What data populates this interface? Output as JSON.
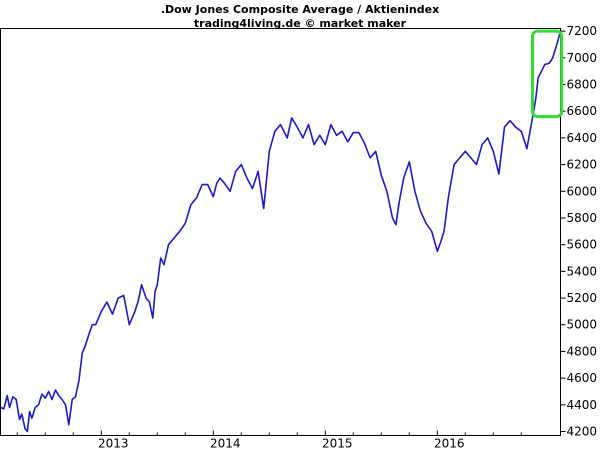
{
  "chart_data": {
    "type": "line",
    "title": ".Dow Jones Composite Average / Aktienindex",
    "subtitle": "trading4living.de © market maker",
    "xlabel": "",
    "ylabel": "",
    "grid": false,
    "legend": "none",
    "xlim": [
      2012.1,
      2017.1
    ],
    "ylim": [
      4170,
      7220
    ],
    "x_ticks": [
      {
        "value": 2013.0,
        "label": "2013"
      },
      {
        "value": 2014.0,
        "label": "2014"
      },
      {
        "value": 2015.0,
        "label": "2015"
      },
      {
        "value": 2016.0,
        "label": "2016"
      }
    ],
    "y_ticks": [
      4200,
      4400,
      4600,
      4800,
      5000,
      5200,
      5400,
      5600,
      5800,
      6000,
      6200,
      6400,
      6600,
      6800,
      7000,
      7200
    ],
    "highlight_box": {
      "x_range": [
        2016.85,
        2017.11
      ],
      "y_range": [
        6560,
        7200
      ],
      "color": "#33dd33"
    },
    "series_color": "#1a1acc",
    "series": [
      {
        "x": [
          2012.1,
          2012.13,
          2012.16,
          2012.18,
          2012.21,
          2012.24,
          2012.27,
          2012.29,
          2012.32,
          2012.34,
          2012.36,
          2012.38,
          2012.41,
          2012.44,
          2012.47,
          2012.5,
          2012.53,
          2012.56,
          2012.59,
          2012.62,
          2012.65,
          2012.68,
          2012.71,
          2012.74,
          2012.77,
          2012.8,
          2012.83,
          2012.86,
          2012.89,
          2012.92,
          2012.95,
          2013.0,
          2013.05,
          2013.1,
          2013.15,
          2013.2,
          2013.25,
          2013.3,
          2013.33,
          2013.36,
          2013.4,
          2013.43,
          2013.46,
          2013.48,
          2013.5,
          2013.53,
          2013.56,
          2013.6,
          2013.65,
          2013.7,
          2013.75,
          2013.8,
          2013.85,
          2013.9,
          2013.95,
          2014.0,
          2014.03,
          2014.06,
          2014.1,
          2014.15,
          2014.2,
          2014.25,
          2014.3,
          2014.35,
          2014.4,
          2014.45,
          2014.5,
          2014.55,
          2014.6,
          2014.63,
          2014.66,
          2014.7,
          2014.75,
          2014.8,
          2014.85,
          2014.9,
          2014.95,
          2015.0,
          2015.05,
          2015.1,
          2015.15,
          2015.2,
          2015.25,
          2015.3,
          2015.35,
          2015.4,
          2015.45,
          2015.5,
          2015.55,
          2015.6,
          2015.63,
          2015.66,
          2015.7,
          2015.75,
          2015.8,
          2015.85,
          2015.9,
          2015.95,
          2016.0,
          2016.03,
          2016.06,
          2016.1,
          2016.15,
          2016.2,
          2016.25,
          2016.3,
          2016.35,
          2016.4,
          2016.45,
          2016.5,
          2016.55,
          2016.6,
          2016.65,
          2016.7,
          2016.75,
          2016.8,
          2016.85,
          2016.88,
          2016.9,
          2016.93,
          2016.96,
          2017.0,
          2017.03,
          2017.06,
          2017.1
        ],
        "values": [
          4380,
          4370,
          4470,
          4380,
          4460,
          4440,
          4290,
          4330,
          4220,
          4200,
          4350,
          4300,
          4380,
          4400,
          4480,
          4450,
          4500,
          4440,
          4510,
          4470,
          4440,
          4400,
          4250,
          4440,
          4460,
          4580,
          4790,
          4850,
          4930,
          5000,
          5000,
          5100,
          5170,
          5080,
          5200,
          5220,
          5000,
          5100,
          5180,
          5300,
          5200,
          5170,
          5050,
          5250,
          5300,
          5500,
          5450,
          5600,
          5650,
          5700,
          5760,
          5900,
          5950,
          6050,
          6050,
          5960,
          6060,
          6100,
          6060,
          6000,
          6150,
          6200,
          6100,
          6020,
          6150,
          5870,
          6300,
          6450,
          6500,
          6450,
          6400,
          6550,
          6480,
          6400,
          6500,
          6350,
          6420,
          6350,
          6500,
          6420,
          6450,
          6370,
          6440,
          6440,
          6360,
          6250,
          6300,
          6120,
          6000,
          5800,
          5750,
          5920,
          6100,
          6220,
          6000,
          5850,
          5760,
          5700,
          5550,
          5620,
          5700,
          5960,
          6200,
          6250,
          6300,
          6250,
          6200,
          6350,
          6400,
          6300,
          6130,
          6480,
          6530,
          6480,
          6450,
          6320,
          6550,
          6700,
          6850,
          6900,
          6950,
          6960,
          7000,
          7080,
          7200
        ]
      }
    ]
  }
}
